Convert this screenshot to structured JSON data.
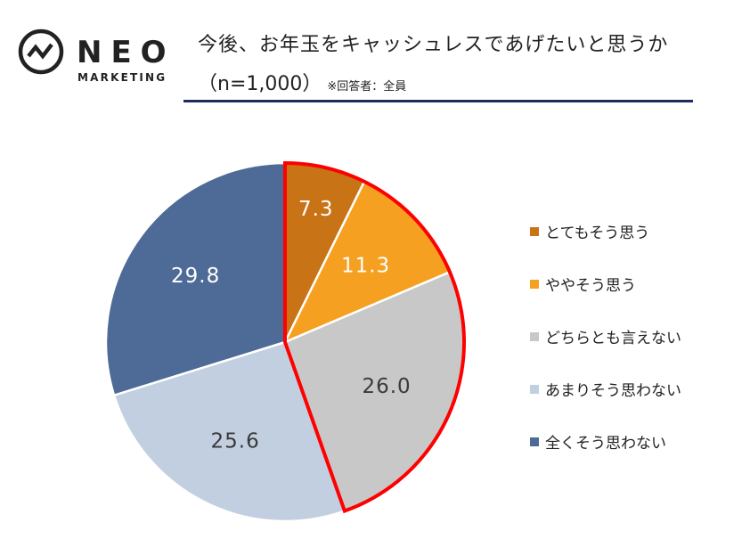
{
  "header": {
    "logo_brand": "NEO",
    "logo_sub": "MARKETING",
    "title": "今後、お年玉をキャッシュレスであげたいと思うか",
    "sample": "（n=1,000）",
    "note": "※回答者：全員"
  },
  "chart_data": {
    "type": "pie",
    "categories": [
      "とてもそう思う",
      "ややそう思う",
      "どちらとも言えない",
      "あまりそう思わない",
      "全くそう思わない"
    ],
    "values": [
      7.3,
      11.3,
      26.0,
      25.6,
      29.8
    ],
    "value_labels": [
      "7.3",
      "11.3",
      "26.0",
      "25.6",
      "29.8"
    ],
    "colors": [
      "#c87316",
      "#f5a021",
      "#c8c8c8",
      "#c2cfe0",
      "#4e6a96"
    ],
    "label_colors": [
      "#ffffff",
      "#ffffff",
      "#3a3a3a",
      "#3a3a3a",
      "#ffffff"
    ],
    "highlight": {
      "categories": [
        "とてもそう思う",
        "ややそう思う",
        "どちらとも言えない"
      ],
      "color": "#ff0000"
    },
    "start": "12 o'clock",
    "direction": "clockwise",
    "legend_position": "right"
  }
}
